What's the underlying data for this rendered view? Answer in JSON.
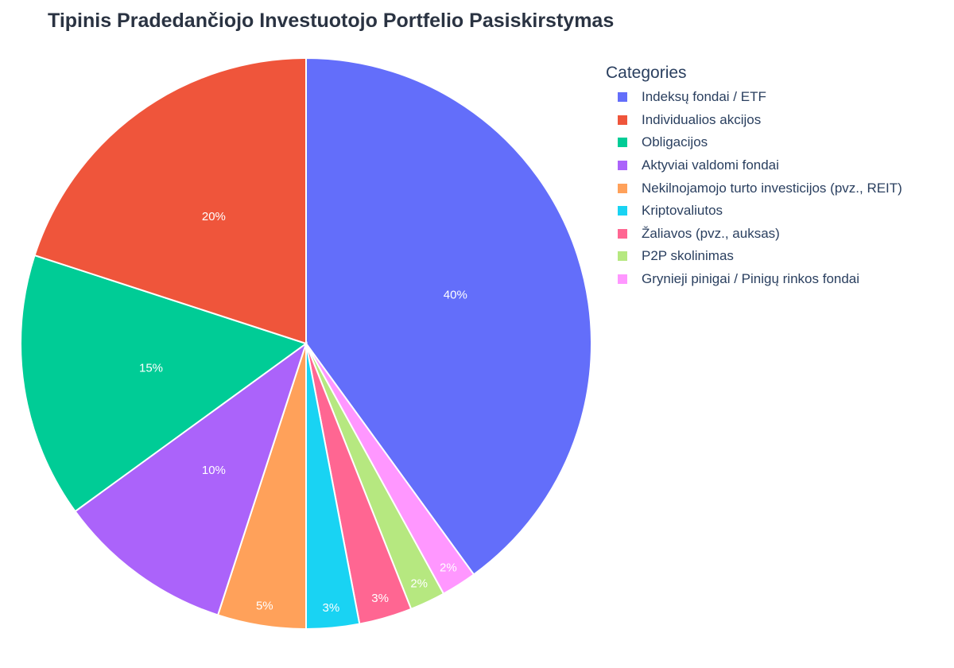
{
  "chart_data": {
    "type": "pie",
    "title": "Tipinis Pradedančiojo Investuotojo Portfelio Pasiskirstymas",
    "legend_title": "Categories",
    "legend_position": "right",
    "categories": [
      "Indeksų fondai / ETF",
      "Individualios akcijos",
      "Obligacijos",
      "Aktyviai valdomi fondai",
      "Nekilnojamojo turto investicijos (pvz., REIT)",
      "Kriptovaliutos",
      "Žaliavos (pvz., auksas)",
      "P2P skolinimas",
      "Grynieji pinigai / Pinigų rinkos fondai"
    ],
    "slice_order": [
      "Indeksų fondai / ETF",
      "Grynieji pinigai / Pinigų rinkos fondai",
      "P2P skolinimas",
      "Žaliavos (pvz., auksas)",
      "Kriptovaliutos",
      "Nekilnojamojo turto investicijos (pvz., REIT)",
      "Aktyviai valdomi fondai",
      "Obligacijos",
      "Individualios akcijos"
    ],
    "values": [
      40,
      20,
      15,
      10,
      5,
      3,
      3,
      2,
      2
    ],
    "labels": [
      "40%",
      "20%",
      "15%",
      "10%",
      "5%",
      "3%",
      "3%",
      "2%",
      "2%"
    ],
    "colors": [
      "#636efa",
      "#ef553b",
      "#00cc96",
      "#ab63fa",
      "#ffa15a",
      "#19d3f3",
      "#ff6692",
      "#b6e880",
      "#ff97ff"
    ]
  }
}
